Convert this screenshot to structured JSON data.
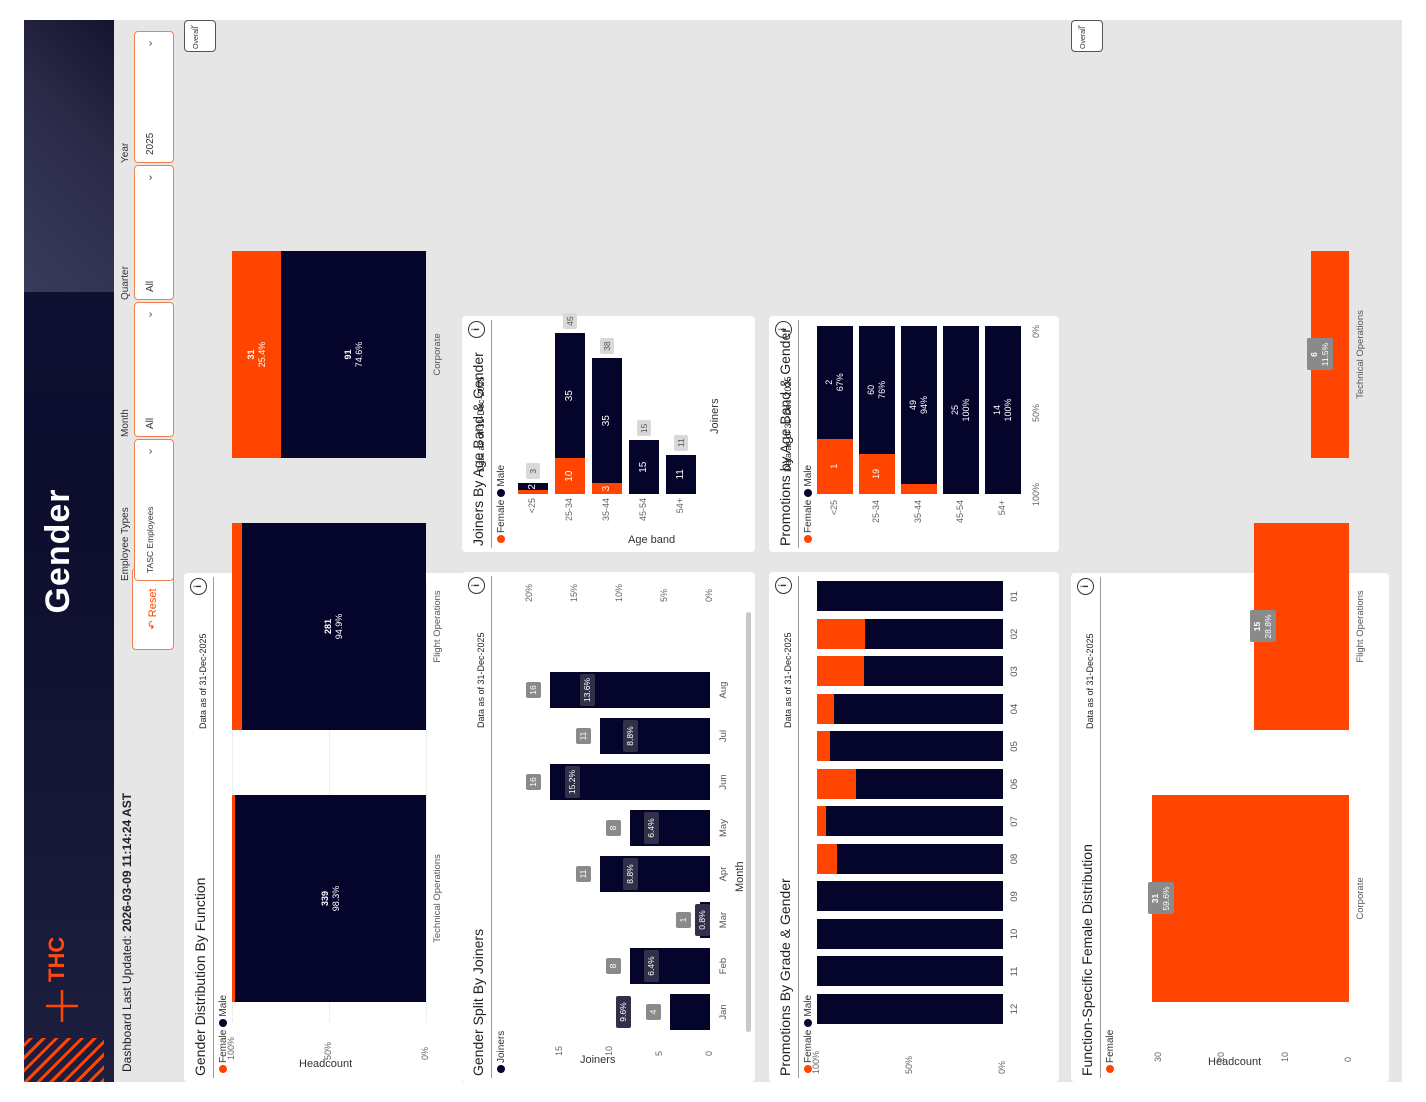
{
  "header": {
    "title": "Gender",
    "brand": "THC",
    "last_updated_label": "Dashboard Last Updated:",
    "last_updated_value": "2026-03-09 11:14:24 AST",
    "reset_label": "Reset",
    "slicers": [
      {
        "label": "Employee Types",
        "value": "TASC Employees"
      },
      {
        "label": "Month",
        "value": "All"
      },
      {
        "label": "Quarter",
        "value": "All"
      },
      {
        "label": "Year",
        "value": "2025"
      }
    ],
    "overall_dropdown": "Overall"
  },
  "colors": {
    "female": "#ff4500",
    "male": "#05042a"
  },
  "legend": {
    "female": "Female",
    "male": "Male",
    "joiners": "Joiners"
  },
  "as_of": "Data as of 31-Dec-2025",
  "info_icon": "i",
  "panels": {
    "gender_function": {
      "title": "Gender Distribution By Function",
      "ylabel": "Headcount",
      "ticks": [
        "100%",
        "50%",
        "0%"
      ],
      "chart_data": {
        "type": "bar",
        "stacking": "percent",
        "categories": [
          "Technical Operations",
          "Flight Operations",
          "Corporate"
        ],
        "series": [
          {
            "name": "Male",
            "values": [
              339,
              281,
              91
            ],
            "pct": [
              "98.3%",
              "94.9%",
              "74.6%"
            ]
          },
          {
            "name": "Female",
            "pct_values": [
              1.7,
              5.1,
              25.4
            ],
            "labels": [
              "",
              "",
              "31"
            ],
            "pct": [
              "",
              "",
              "25.4%"
            ]
          }
        ]
      }
    },
    "joiners_age": {
      "title": "Joiners By Age Band & Gender",
      "xlabel": "Age band",
      "ylabel": "Joiners",
      "chart_data": {
        "type": "bar",
        "stacking": "stacked",
        "categories": [
          "<25",
          "25-34",
          "35-44",
          "45-54",
          "54+"
        ],
        "series": [
          {
            "name": "Female",
            "values": [
              1,
              10,
              3,
              0,
              0
            ]
          },
          {
            "name": "Male",
            "values": [
              2,
              35,
              35,
              15,
              11
            ]
          }
        ],
        "totals": [
          3,
          45,
          38,
          15,
          11
        ],
        "male_labels": [
          "2",
          "35",
          "35",
          "15",
          "11"
        ],
        "female_labels": [
          "",
          "10",
          "3",
          "",
          ""
        ],
        "total_labels": [
          "3",
          "45",
          "38",
          "15",
          "11"
        ]
      }
    },
    "gender_joiners": {
      "title": "Gender Split By Joiners",
      "xlabel": "Month",
      "ylabel": "Joiners",
      "left_ticks": [
        "15",
        "10",
        "5",
        "0"
      ],
      "right_ticks": [
        "20%",
        "15%",
        "10%",
        "5%",
        "0%"
      ],
      "right_dash": "-",
      "chart_data": {
        "type": "bar",
        "categories": [
          "Jan",
          "Feb",
          "Mar",
          "Apr",
          "May",
          "Jun",
          "Jul",
          "Aug"
        ],
        "series": [
          {
            "name": "Joiners",
            "values": [
              4,
              8,
              1,
              11,
              8,
              16,
              11,
              16
            ]
          },
          {
            "name": "Female %",
            "values": [
              9.6,
              6.4,
              0.8,
              8.8,
              6.4,
              15.2,
              8.8,
              13.6
            ]
          }
        ],
        "value_labels": [
          "4",
          "8",
          "1",
          "11",
          "8",
          "16",
          "11",
          "16"
        ],
        "pct_labels": [
          "9.6%",
          "6.4%",
          "0.8%",
          "8.8%",
          "6.4%",
          "15.2%",
          "8.8%",
          "13.6%"
        ]
      }
    },
    "promo_age": {
      "title": "Promotions by Age Band & Gender",
      "ticks": [
        "100%",
        "50%",
        "0%"
      ],
      "chart_data": {
        "type": "bar",
        "stacking": "percent",
        "categories": [
          "<25",
          "25-34",
          "35-44",
          "45-54",
          "54+"
        ],
        "series": [
          {
            "name": "Male",
            "values": [
              2,
              60,
              49,
              25,
              14
            ],
            "pct": [
              67,
              76,
              94,
              100,
              100
            ]
          },
          {
            "name": "Female",
            "values": [
              1,
              19,
              3,
              0,
              0
            ]
          }
        ],
        "male_labels": [
          "2",
          "60",
          "49",
          "25",
          "14"
        ],
        "male_pct_labels": [
          "67%",
          "76%",
          "94%",
          "100%",
          "100%"
        ],
        "female_labels": [
          "1",
          "19",
          "",
          "",
          ""
        ]
      }
    },
    "promo_grade": {
      "title": "Promotions By Grade & Gender",
      "ticks": [
        "100%",
        "50%",
        "0%"
      ],
      "chart_data": {
        "type": "bar",
        "stacking": "percent",
        "categories": [
          "12",
          "11",
          "10",
          "09",
          "08",
          "07",
          "06",
          "05",
          "04",
          "03",
          "02",
          "01"
        ],
        "series": [
          {
            "name": "Male",
            "pct": [
              100,
              100,
              100,
              100,
              89,
              95,
              79,
              93,
              91,
              75,
              74,
              100
            ]
          },
          {
            "name": "Female",
            "pct": [
              0,
              0,
              0,
              0,
              11,
              5,
              21,
              7,
              9,
              25,
              26,
              0
            ]
          }
        ]
      }
    },
    "female_function": {
      "title": "Function-Specific Female Distribution",
      "ylabel": "Headcount",
      "ticks": [
        "30",
        "20",
        "10",
        "0"
      ],
      "chart_data": {
        "type": "bar",
        "categories": [
          "Corporate",
          "Flight Operations",
          "Technical Operations"
        ],
        "series": [
          {
            "name": "Female",
            "values": [
              31,
              15,
              6
            ]
          }
        ],
        "value_labels": [
          "31",
          "15",
          "6"
        ],
        "pct_labels": [
          "59.6%",
          "28.8%",
          "11.5%"
        ],
        "ylim": [
          0,
          35
        ]
      }
    }
  }
}
